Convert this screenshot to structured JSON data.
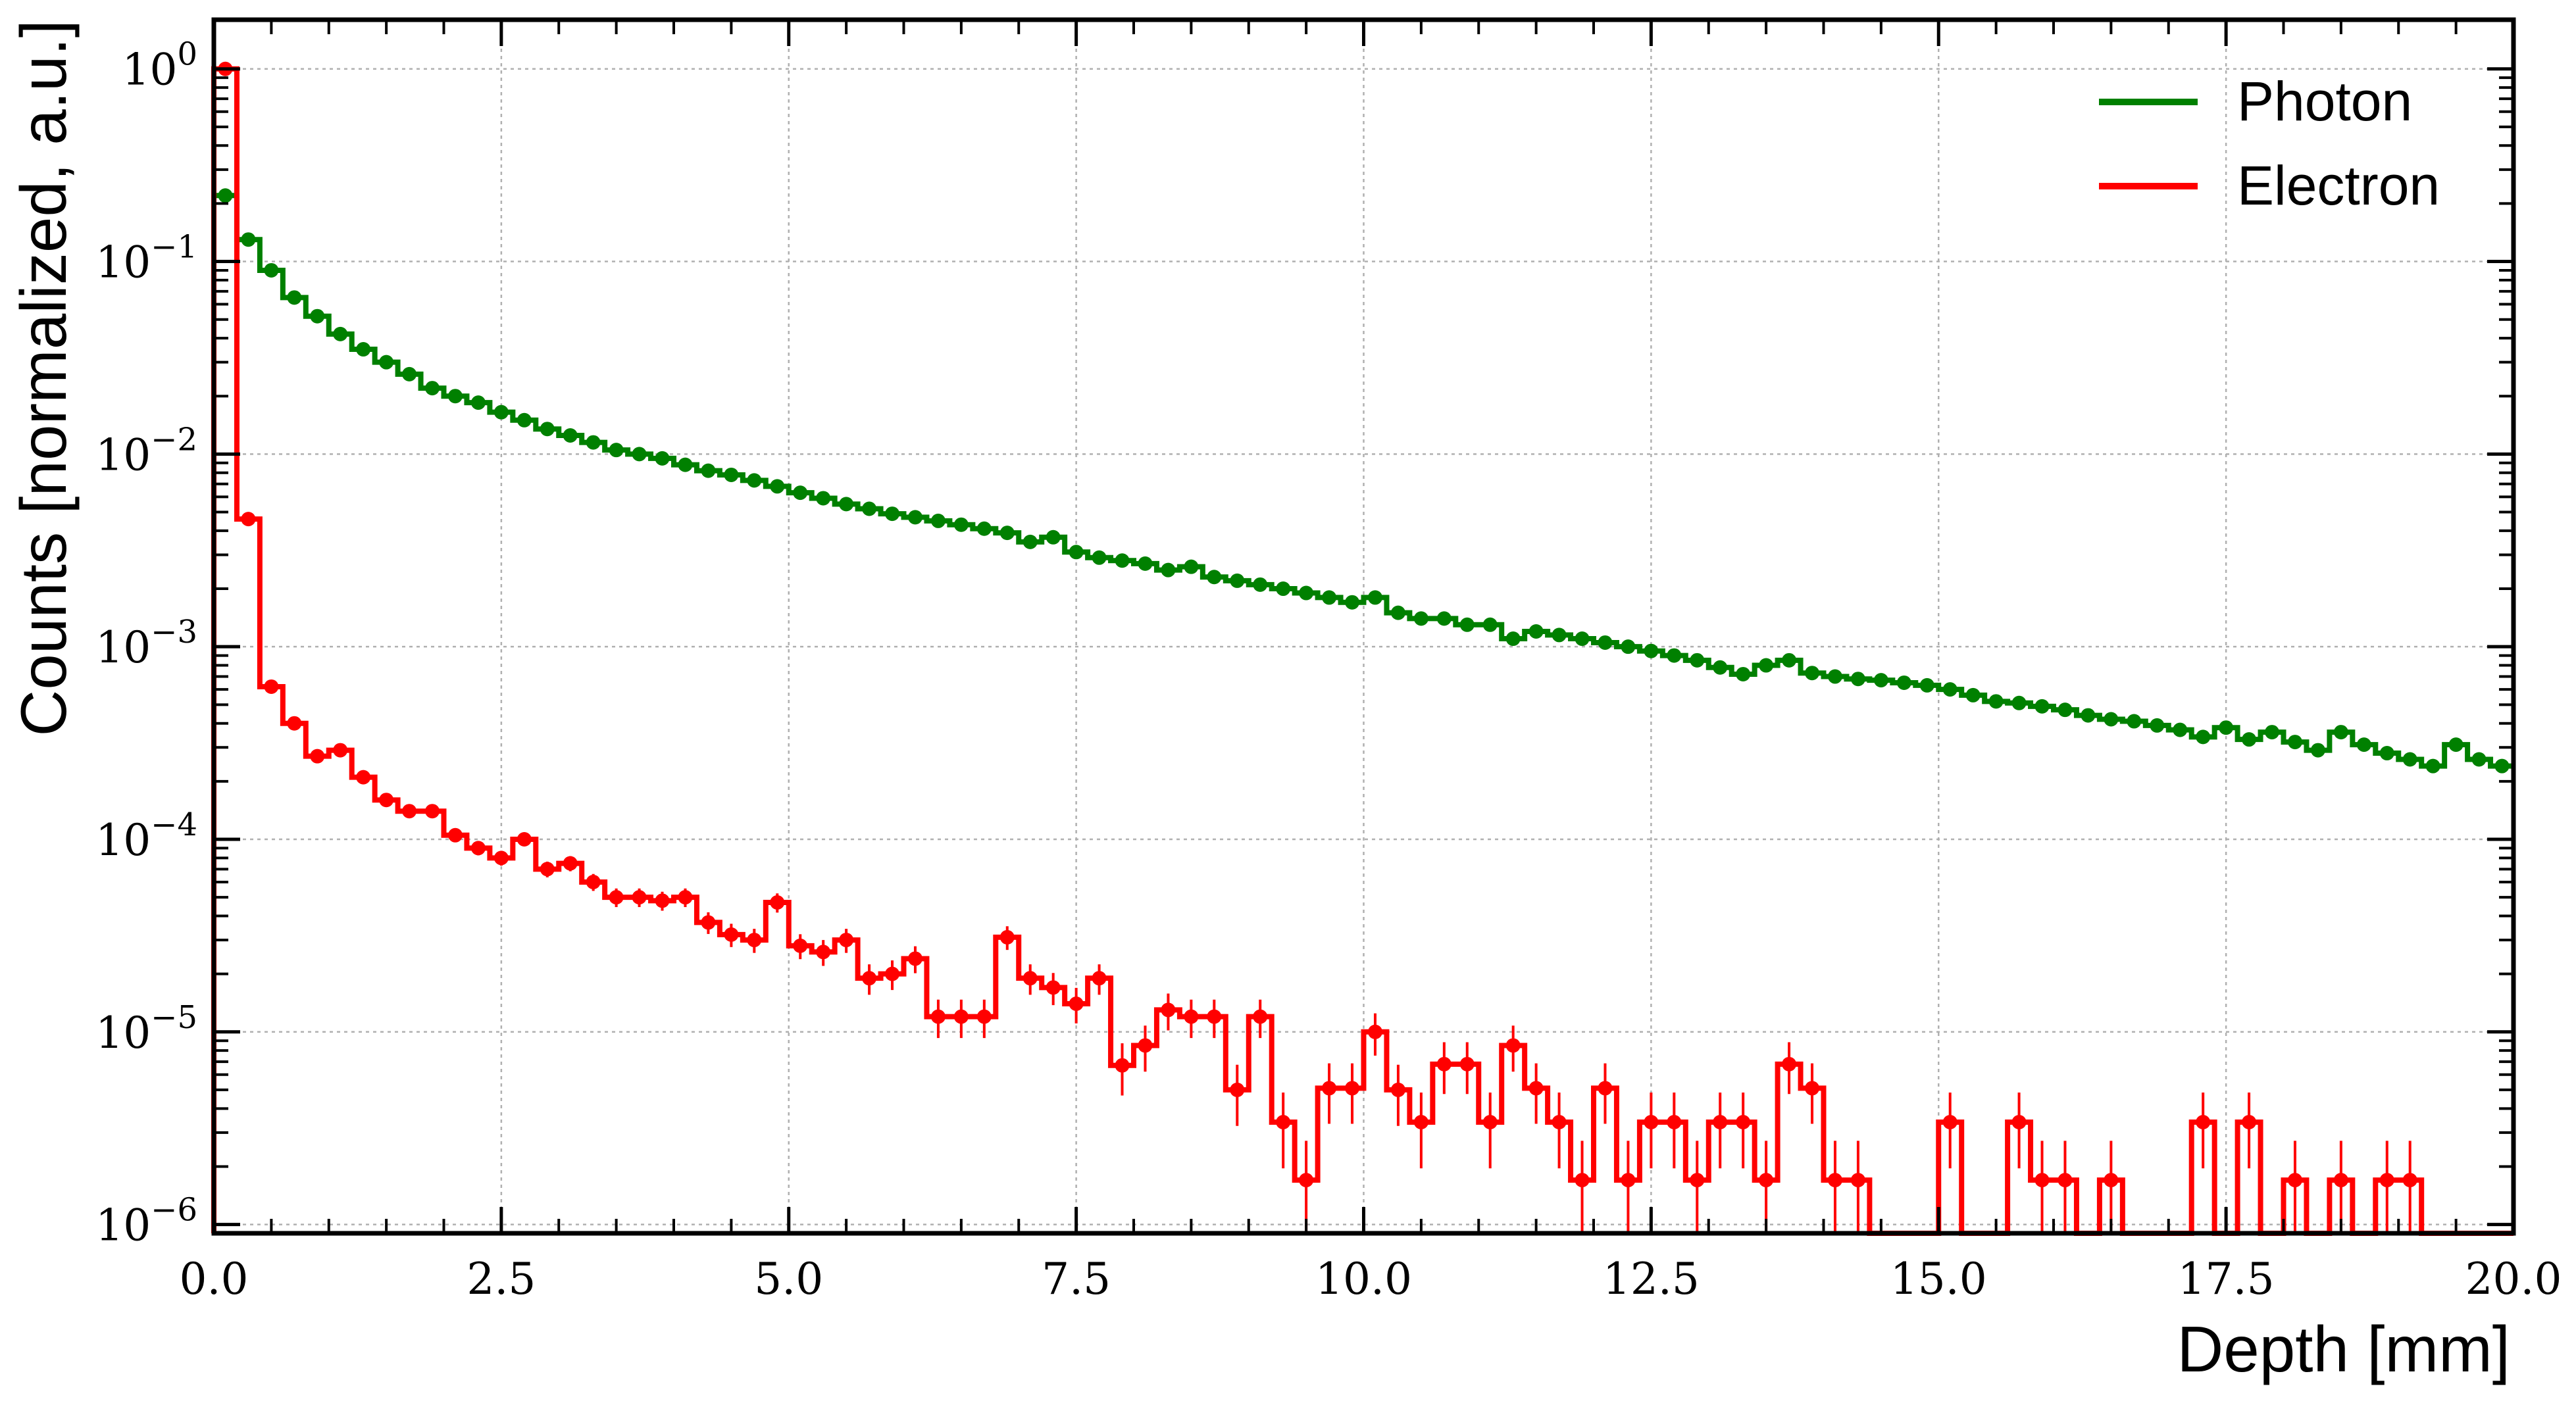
{
  "chart_data": {
    "type": "line",
    "title": "",
    "xlabel": "Depth [mm]",
    "ylabel": "Counts [normalized, a.u.]",
    "xlim": [
      0,
      20
    ],
    "ylim": [
      9e-07,
      1.8
    ],
    "yscale": "log",
    "grid": true,
    "legend_position": "top-right",
    "x_ticks": [
      "0.0",
      "2.5",
      "5.0",
      "7.5",
      "10.0",
      "12.5",
      "15.0",
      "17.5",
      "20.0"
    ],
    "y_ticks": [
      {
        "base": "10",
        "exp": "0"
      },
      {
        "base": "10",
        "exp": "−1"
      },
      {
        "base": "10",
        "exp": "−2"
      },
      {
        "base": "10",
        "exp": "−3"
      },
      {
        "base": "10",
        "exp": "−4"
      },
      {
        "base": "10",
        "exp": "−5"
      },
      {
        "base": "10",
        "exp": "−6"
      }
    ],
    "bin_width": 0.2,
    "series": [
      {
        "name": "Photon",
        "color": "#008000",
        "values": [
          0.22,
          0.13,
          0.09,
          0.065,
          0.052,
          0.042,
          0.035,
          0.03,
          0.026,
          0.022,
          0.02,
          0.0185,
          0.0165,
          0.015,
          0.0135,
          0.0125,
          0.0115,
          0.0105,
          0.01,
          0.0095,
          0.0088,
          0.0082,
          0.0078,
          0.0073,
          0.0068,
          0.0063,
          0.0059,
          0.0055,
          0.0052,
          0.0049,
          0.0047,
          0.0045,
          0.0043,
          0.0041,
          0.0039,
          0.0035,
          0.0037,
          0.0031,
          0.0029,
          0.0028,
          0.0027,
          0.0025,
          0.0026,
          0.0023,
          0.0022,
          0.0021,
          0.002,
          0.0019,
          0.0018,
          0.0017,
          0.0018,
          0.0015,
          0.0014,
          0.0014,
          0.0013,
          0.0013,
          0.0011,
          0.0012,
          0.00115,
          0.0011,
          0.00105,
          0.001,
          0.00095,
          0.0009,
          0.00085,
          0.00078,
          0.00072,
          0.0008,
          0.00085,
          0.00073,
          0.0007,
          0.00068,
          0.00067,
          0.00065,
          0.00063,
          0.0006,
          0.00056,
          0.00052,
          0.00051,
          0.00049,
          0.00047,
          0.00044,
          0.00042,
          0.00041,
          0.00039,
          0.00037,
          0.00034,
          0.00038,
          0.00033,
          0.00036,
          0.00032,
          0.00029,
          0.00036,
          0.00031,
          0.00028,
          0.00026,
          0.00024,
          0.00031,
          0.00026,
          0.00024
        ]
      },
      {
        "name": "Electron",
        "color": "#ff0000",
        "values": [
          1.0,
          0.0046,
          0.00062,
          0.0004,
          0.00027,
          0.00029,
          0.00021,
          0.00016,
          0.00014,
          0.00014,
          0.000105,
          9e-05,
          8e-05,
          0.0001,
          7e-05,
          7.5e-05,
          6e-05,
          5e-05,
          5e-05,
          4.8e-05,
          5e-05,
          3.7e-05,
          3.2e-05,
          3e-05,
          4.7e-05,
          2.8e-05,
          2.6e-05,
          3e-05,
          1.9e-05,
          2e-05,
          2.4e-05,
          1.2e-05,
          1.2e-05,
          1.2e-05,
          3.1e-05,
          1.9e-05,
          1.7e-05,
          1.4e-05,
          1.9e-05,
          6.7e-06,
          8.5e-06,
          1.3e-05,
          1.2e-05,
          1.2e-05,
          5e-06,
          1.2e-05,
          3.4e-06,
          1.7e-06,
          5.1e-06,
          5.1e-06,
          1e-05,
          5e-06,
          3.4e-06,
          6.8e-06,
          6.8e-06,
          3.4e-06,
          8.5e-06,
          5.1e-06,
          3.4e-06,
          1.7e-06,
          5.1e-06,
          1.7e-06,
          3.4e-06,
          3.4e-06,
          1.7e-06,
          3.4e-06,
          3.4e-06,
          1.7e-06,
          6.8e-06,
          5.1e-06,
          1.7e-06,
          1.7e-06,
          0,
          0,
          0,
          3.4e-06,
          0,
          0,
          3.4e-06,
          1.7e-06,
          1.7e-06,
          0,
          1.7e-06,
          0,
          0,
          0,
          3.4e-06,
          0,
          3.4e-06,
          0,
          1.7e-06,
          0,
          1.7e-06,
          0,
          1.7e-06,
          1.7e-06,
          0,
          0,
          0,
          0
        ]
      }
    ]
  }
}
